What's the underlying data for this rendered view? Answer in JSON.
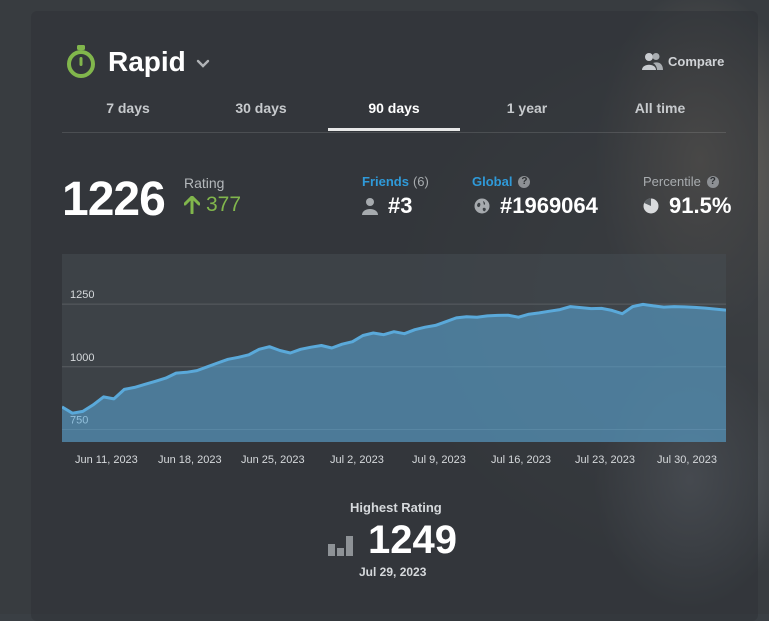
{
  "header": {
    "title": "Rapid",
    "compare_label": "Compare"
  },
  "tabs": [
    {
      "label": "7 days",
      "active": false
    },
    {
      "label": "30 days",
      "active": false
    },
    {
      "label": "90 days",
      "active": true
    },
    {
      "label": "1 year",
      "active": false
    },
    {
      "label": "All time",
      "active": false
    }
  ],
  "rating": {
    "value": "1226",
    "label": "Rating",
    "change": "377"
  },
  "stats": {
    "friends_label": "Friends",
    "friends_count": "(6)",
    "friends_rank": "#3",
    "global_label": "Global",
    "global_rank": "#1969064",
    "percentile_label": "Percentile",
    "percentile_value": "91.5%"
  },
  "colors": {
    "accent_green": "#81b64c",
    "link_blue": "#2f9ad9",
    "chart_line": "#5aa9da"
  },
  "chart_data": {
    "type": "area",
    "x_tick_labels": [
      "Jun 11, 2023",
      "Jun 18, 2023",
      "Jun 25, 2023",
      "Jul 2, 2023",
      "Jul 9, 2023",
      "Jul 16, 2023",
      "Jul 23, 2023",
      "Jul 30, 2023"
    ],
    "y_tick_labels": [
      "750",
      "1000",
      "1250"
    ],
    "ylim": [
      700,
      1450
    ],
    "grid": true,
    "series": [
      {
        "values": [
          840,
          815,
          822,
          848,
          880,
          872,
          910,
          918,
          930,
          942,
          955,
          975,
          978,
          985,
          1000,
          1015,
          1030,
          1038,
          1048,
          1070,
          1080,
          1065,
          1055,
          1070,
          1078,
          1085,
          1075,
          1090,
          1100,
          1125,
          1135,
          1128,
          1140,
          1132,
          1148,
          1158,
          1165,
          1180,
          1195,
          1200,
          1198,
          1203,
          1205,
          1206,
          1198,
          1210,
          1215,
          1222,
          1228,
          1240,
          1236,
          1232,
          1233,
          1225,
          1212,
          1240,
          1249,
          1243,
          1238,
          1240,
          1239,
          1237,
          1234,
          1230,
          1226
        ]
      }
    ]
  },
  "highest": {
    "label": "Highest Rating",
    "value": "1249",
    "date": "Jul 29, 2023"
  }
}
